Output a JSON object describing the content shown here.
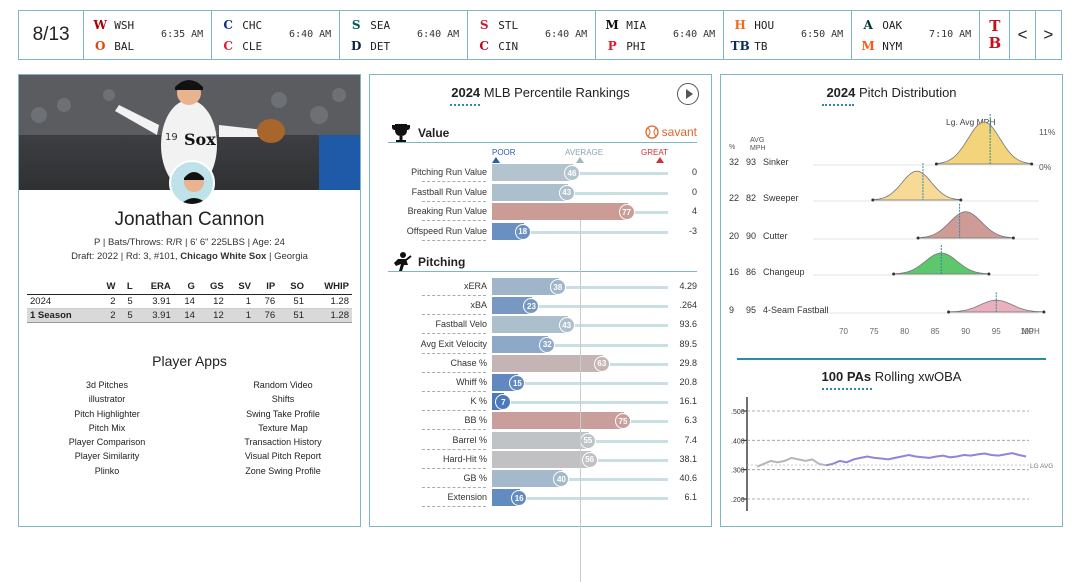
{
  "scoreboard": {
    "date": "8/13",
    "games": [
      {
        "away": "WSH",
        "home": "BAL",
        "time": "6:35 AM",
        "away_color": "#ab0003",
        "home_color": "#df4601",
        "away_glyph": "W",
        "home_glyph": "O"
      },
      {
        "away": "CHC",
        "home": "CLE",
        "time": "6:40 AM",
        "away_color": "#0e3386",
        "home_color": "#e31937",
        "away_glyph": "C",
        "home_glyph": "C"
      },
      {
        "away": "SEA",
        "home": "DET",
        "time": "6:40 AM",
        "away_color": "#005c5c",
        "home_color": "#0c2340",
        "away_glyph": "S",
        "home_glyph": "D"
      },
      {
        "away": "STL",
        "home": "CIN",
        "time": "6:40 AM",
        "away_color": "#c41e3a",
        "home_color": "#c6011f",
        "away_glyph": "S",
        "home_glyph": "C"
      },
      {
        "away": "MIA",
        "home": "PHI",
        "time": "6:40 AM",
        "away_color": "#0d0d0d",
        "home_color": "#e81828",
        "away_glyph": "M",
        "home_glyph": "P"
      },
      {
        "away": "HOU",
        "home": "TB",
        "time": "6:50 AM",
        "away_color": "#eb6e1f",
        "home_color": "#092c5c",
        "away_glyph": "H",
        "home_glyph": "TB"
      },
      {
        "away": "OAK",
        "home": "NYM",
        "time": "7:10 AM",
        "away_color": "#003831",
        "home_color": "#ff5910",
        "away_glyph": "A",
        "home_glyph": "M"
      }
    ],
    "extra_logo": {
      "top": "T",
      "bottom": "B",
      "color": "#c0111f"
    },
    "prev_label": "<",
    "next_label": ">"
  },
  "player": {
    "name": "Jonathan Cannon",
    "info_line": "P | Bats/Throws: R/R | 6' 6\" 225LBS | Age: 24",
    "draft_prefix": "Draft: 2022 | Rd: 3, #101,",
    "draft_team": "Chicago White Sox",
    "draft_suffix": "| Georgia",
    "stats_headers": [
      "",
      "W",
      "L",
      "ERA",
      "G",
      "GS",
      "SV",
      "IP",
      "SO",
      "WHIP"
    ],
    "stats_rows": [
      [
        "2024",
        "2",
        "5",
        "3.91",
        "14",
        "12",
        "1",
        "76",
        "51",
        "1.28"
      ],
      [
        "1 Season",
        "2",
        "5",
        "3.91",
        "14",
        "12",
        "1",
        "76",
        "51",
        "1.28"
      ]
    ]
  },
  "apps": {
    "title": "Player Apps",
    "left": [
      "3d Pitches",
      "illustrator",
      "Pitch Highlighter",
      "Pitch Mix",
      "Player Comparison",
      "Player Similarity",
      "Plinko"
    ],
    "right": [
      "Random Video",
      "Shifts",
      "Swing Take Profile",
      "Texture Map",
      "Transaction History",
      "Visual Pitch Report",
      "Zone Swing Profile"
    ]
  },
  "percentiles": {
    "title_year": "2024",
    "title_rest": "MLB Percentile Rankings",
    "savant": "savant",
    "scale": {
      "poor": "POOR",
      "average": "AVERAGE",
      "great": "GREAT"
    },
    "value_title": "Value",
    "pitching_title": "Pitching",
    "value_rows": [
      {
        "label": "Pitching Run Value",
        "pct": 46,
        "value": "0"
      },
      {
        "label": "Fastball Run Value",
        "pct": 43,
        "value": "0"
      },
      {
        "label": "Breaking Run Value",
        "pct": 77,
        "value": "4"
      },
      {
        "label": "Offspeed Run Value",
        "pct": 18,
        "value": "-3"
      }
    ],
    "pitching_rows": [
      {
        "label": "xERA",
        "pct": 38,
        "value": "4.29"
      },
      {
        "label": "xBA",
        "pct": 23,
        "value": ".264"
      },
      {
        "label": "Fastball Velo",
        "pct": 43,
        "value": "93.6"
      },
      {
        "label": "Avg Exit Velocity",
        "pct": 32,
        "value": "89.5"
      },
      {
        "label": "Chase %",
        "pct": 63,
        "value": "29.8"
      },
      {
        "label": "Whiff %",
        "pct": 15,
        "value": "20.8"
      },
      {
        "label": "K %",
        "pct": 7,
        "value": "16.1"
      },
      {
        "label": "BB %",
        "pct": 75,
        "value": "6.3"
      },
      {
        "label": "Barrel %",
        "pct": 55,
        "value": "7.4"
      },
      {
        "label": "Hard-Hit %",
        "pct": 56,
        "value": "38.1"
      },
      {
        "label": "GB %",
        "pct": 40,
        "value": "40.6"
      },
      {
        "label": "Extension",
        "pct": 16,
        "value": "6.1"
      }
    ]
  },
  "pitch_dist": {
    "title_year": "2024",
    "title_rest": "Pitch Distribution",
    "lg_avg_label": "Lg. Avg MPH",
    "pct_max": "11%",
    "pct_min": "0%",
    "col_pct": "%",
    "col_avg": "AVG",
    "col_mph": "MPH",
    "pitches": [
      {
        "pct": "32",
        "mph": "93",
        "name": "Sinker",
        "color": "#f2cf6b",
        "lg_avg": 94
      },
      {
        "pct": "22",
        "mph": "82",
        "name": "Sweeper",
        "color": "#f5d68a",
        "lg_avg": 83
      },
      {
        "pct": "20",
        "mph": "90",
        "name": "Cutter",
        "color": "#c9908c",
        "lg_avg": 89
      },
      {
        "pct": "16",
        "mph": "86",
        "name": "Changeup",
        "color": "#4cc05c",
        "lg_avg": 86
      },
      {
        "pct": "9",
        "mph": "95",
        "name": "4-Seam Fastball",
        "color": "#e9a7b6",
        "lg_avg": 95
      }
    ],
    "x_ticks": [
      "70",
      "75",
      "80",
      "85",
      "90",
      "95",
      "100"
    ],
    "x_unit": "MPH"
  },
  "xwoba": {
    "title_num": "100 PAs",
    "title_rest": "Rolling xwOBA",
    "y_ticks": [
      ".500",
      ".400",
      ".300",
      ".200"
    ],
    "lg_avg_label": "LG AVG",
    "lg_avg": 0.316,
    "colors": {
      "rolling": "#8d87d6",
      "early": "#b9b4bb"
    }
  },
  "chart_data": [
    {
      "type": "bar",
      "title": "2024 MLB Percentile Rankings",
      "categories": [
        "Pitching Run Value",
        "Fastball Run Value",
        "Breaking Run Value",
        "Offspeed Run Value",
        "xERA",
        "xBA",
        "Fastball Velo",
        "Avg Exit Velocity",
        "Chase %",
        "Whiff %",
        "K %",
        "BB %",
        "Barrel %",
        "Hard-Hit %",
        "GB %",
        "Extension"
      ],
      "values": [
        46,
        43,
        77,
        18,
        38,
        23,
        43,
        32,
        63,
        15,
        7,
        75,
        55,
        56,
        40,
        16
      ],
      "ylim": [
        0,
        100
      ]
    },
    {
      "type": "line",
      "title": "100 PAs Rolling xwOBA",
      "x": [
        1,
        2,
        3,
        4,
        5,
        6,
        7,
        8,
        9,
        10,
        11,
        12,
        13,
        14,
        15,
        16,
        17,
        18,
        19,
        20,
        21,
        22,
        23,
        24,
        25,
        26,
        27,
        28,
        29,
        30,
        31,
        32,
        33,
        34,
        35,
        36,
        37,
        38,
        39,
        40
      ],
      "values": [
        0.31,
        0.32,
        0.33,
        0.325,
        0.33,
        0.34,
        0.335,
        0.33,
        0.335,
        0.32,
        0.315,
        0.32,
        0.33,
        0.325,
        0.335,
        0.34,
        0.345,
        0.34,
        0.338,
        0.335,
        0.34,
        0.345,
        0.35,
        0.345,
        0.342,
        0.34,
        0.345,
        0.348,
        0.342,
        0.345,
        0.35,
        0.348,
        0.352,
        0.355,
        0.35,
        0.348,
        0.352,
        0.356,
        0.35,
        0.345
      ],
      "ylim": [
        0.17,
        0.54
      ]
    }
  ]
}
